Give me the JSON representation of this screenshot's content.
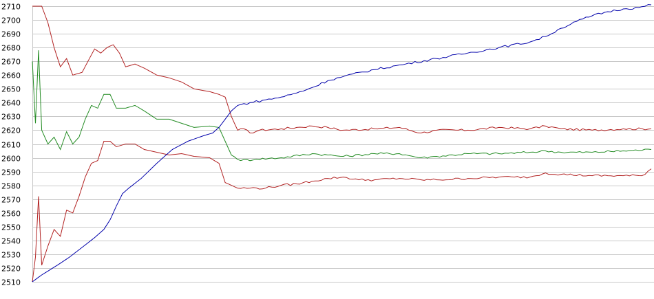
{
  "chart_data": {
    "type": "line",
    "title": "",
    "xlabel": "",
    "ylabel": "",
    "ylim": [
      2510,
      2710
    ],
    "yticks": [
      2510,
      2520,
      2530,
      2540,
      2550,
      2560,
      2570,
      2580,
      2590,
      2600,
      2610,
      2620,
      2630,
      2640,
      2650,
      2660,
      2670,
      2680,
      2690,
      2700,
      2710
    ],
    "grid": true,
    "legend": "none",
    "n_points": 200,
    "series": [
      {
        "color": "#b22222",
        "points": [
          [
            0,
            2710
          ],
          [
            3,
            2710
          ],
          [
            5,
            2698
          ],
          [
            7,
            2680
          ],
          [
            9,
            2666
          ],
          [
            11,
            2672
          ],
          [
            13,
            2660
          ],
          [
            16,
            2662
          ],
          [
            20,
            2679
          ],
          [
            22,
            2676
          ],
          [
            24,
            2680
          ],
          [
            26,
            2682
          ],
          [
            28,
            2676
          ],
          [
            30,
            2666
          ],
          [
            33,
            2668
          ],
          [
            36,
            2665
          ],
          [
            40,
            2660
          ],
          [
            44,
            2658
          ],
          [
            48,
            2655
          ],
          [
            52,
            2650
          ],
          [
            57,
            2648
          ],
          [
            60,
            2646
          ],
          [
            62,
            2644
          ],
          [
            64,
            2630
          ],
          [
            66,
            2620
          ],
          [
            68,
            2621
          ],
          [
            70,
            2618
          ],
          [
            73,
            2620
          ],
          [
            80,
            2621
          ],
          [
            85,
            2622
          ],
          [
            90,
            2623
          ],
          [
            95,
            2622
          ],
          [
            100,
            2620
          ],
          [
            110,
            2621
          ],
          [
            118,
            2622
          ],
          [
            125,
            2618
          ],
          [
            130,
            2620
          ],
          [
            140,
            2620
          ],
          [
            150,
            2622
          ],
          [
            160,
            2621
          ],
          [
            165,
            2623
          ],
          [
            170,
            2621
          ],
          [
            180,
            2620
          ],
          [
            190,
            2621
          ],
          [
            199,
            2621
          ]
        ]
      },
      {
        "color": "#228b22",
        "points": [
          [
            0,
            2670
          ],
          [
            1,
            2625
          ],
          [
            2,
            2678
          ],
          [
            3,
            2620
          ],
          [
            5,
            2610
          ],
          [
            7,
            2615
          ],
          [
            9,
            2606
          ],
          [
            11,
            2619
          ],
          [
            13,
            2610
          ],
          [
            15,
            2615
          ],
          [
            17,
            2628
          ],
          [
            19,
            2638
          ],
          [
            21,
            2636
          ],
          [
            23,
            2646
          ],
          [
            25,
            2646
          ],
          [
            27,
            2636
          ],
          [
            30,
            2636
          ],
          [
            33,
            2638
          ],
          [
            36,
            2634
          ],
          [
            40,
            2628
          ],
          [
            44,
            2628
          ],
          [
            48,
            2625
          ],
          [
            52,
            2622
          ],
          [
            57,
            2623
          ],
          [
            60,
            2622
          ],
          [
            62,
            2612
          ],
          [
            64,
            2602
          ],
          [
            67,
            2598
          ],
          [
            72,
            2599
          ],
          [
            80,
            2600
          ],
          [
            90,
            2603
          ],
          [
            95,
            2602
          ],
          [
            100,
            2601
          ],
          [
            110,
            2603
          ],
          [
            118,
            2603
          ],
          [
            125,
            2600
          ],
          [
            130,
            2601
          ],
          [
            140,
            2603
          ],
          [
            150,
            2603
          ],
          [
            160,
            2604
          ],
          [
            165,
            2605
          ],
          [
            170,
            2604
          ],
          [
            180,
            2604
          ],
          [
            190,
            2605
          ],
          [
            199,
            2606
          ]
        ]
      },
      {
        "color": "#b22222",
        "points": [
          [
            0,
            2510
          ],
          [
            1,
            2528
          ],
          [
            2,
            2572
          ],
          [
            3,
            2522
          ],
          [
            5,
            2536
          ],
          [
            7,
            2548
          ],
          [
            9,
            2543
          ],
          [
            11,
            2562
          ],
          [
            13,
            2560
          ],
          [
            15,
            2572
          ],
          [
            17,
            2586
          ],
          [
            19,
            2596
          ],
          [
            21,
            2598
          ],
          [
            23,
            2612
          ],
          [
            25,
            2612
          ],
          [
            27,
            2608
          ],
          [
            30,
            2610
          ],
          [
            33,
            2610
          ],
          [
            36,
            2606
          ],
          [
            40,
            2604
          ],
          [
            44,
            2602
          ],
          [
            48,
            2603
          ],
          [
            52,
            2601
          ],
          [
            57,
            2600
          ],
          [
            60,
            2596
          ],
          [
            62,
            2582
          ],
          [
            64,
            2580
          ],
          [
            66,
            2578
          ],
          [
            70,
            2578
          ],
          [
            75,
            2578
          ],
          [
            80,
            2580
          ],
          [
            85,
            2581
          ],
          [
            90,
            2583
          ],
          [
            95,
            2585
          ],
          [
            100,
            2586
          ],
          [
            105,
            2584
          ],
          [
            110,
            2584
          ],
          [
            118,
            2585
          ],
          [
            125,
            2584
          ],
          [
            130,
            2584
          ],
          [
            140,
            2585
          ],
          [
            150,
            2586
          ],
          [
            155,
            2586
          ],
          [
            160,
            2586
          ],
          [
            165,
            2589
          ],
          [
            170,
            2588
          ],
          [
            180,
            2587
          ],
          [
            190,
            2587
          ],
          [
            196,
            2587
          ],
          [
            199,
            2592
          ]
        ]
      },
      {
        "color": "#0000aa",
        "points": [
          [
            0,
            2510
          ],
          [
            3,
            2515
          ],
          [
            8,
            2522
          ],
          [
            12,
            2528
          ],
          [
            16,
            2535
          ],
          [
            20,
            2542
          ],
          [
            23,
            2548
          ],
          [
            25,
            2555
          ],
          [
            27,
            2565
          ],
          [
            29,
            2574
          ],
          [
            31,
            2578
          ],
          [
            35,
            2585
          ],
          [
            40,
            2596
          ],
          [
            45,
            2606
          ],
          [
            50,
            2612
          ],
          [
            55,
            2616
          ],
          [
            58,
            2618
          ],
          [
            60,
            2622
          ],
          [
            62,
            2628
          ],
          [
            64,
            2634
          ],
          [
            66,
            2638
          ],
          [
            70,
            2640
          ],
          [
            75,
            2642
          ],
          [
            80,
            2644
          ],
          [
            85,
            2647
          ],
          [
            90,
            2651
          ],
          [
            95,
            2656
          ],
          [
            100,
            2659
          ],
          [
            110,
            2664
          ],
          [
            120,
            2668
          ],
          [
            130,
            2672
          ],
          [
            140,
            2676
          ],
          [
            150,
            2680
          ],
          [
            160,
            2684
          ],
          [
            165,
            2688
          ],
          [
            170,
            2694
          ],
          [
            175,
            2699
          ],
          [
            180,
            2703
          ],
          [
            185,
            2706
          ],
          [
            190,
            2708
          ],
          [
            195,
            2709
          ],
          [
            199,
            2711
          ]
        ]
      }
    ]
  }
}
